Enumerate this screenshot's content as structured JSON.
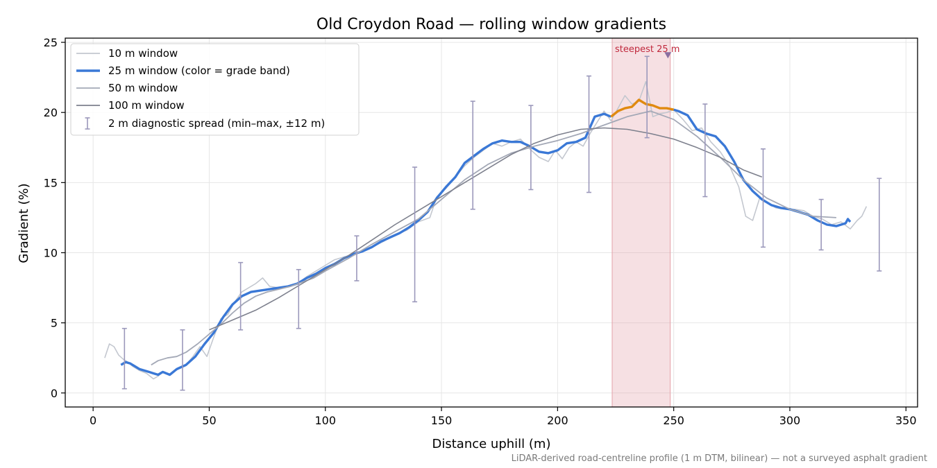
{
  "chart_data": {
    "type": "line",
    "title": "Old Croydon Road — rolling window gradients",
    "xlabel": "Distance uphill (m)",
    "ylabel": "Gradient (%)",
    "xlim": [
      -12,
      355
    ],
    "ylim": [
      -1,
      25.3
    ],
    "x_ticks": [
      0,
      50,
      100,
      150,
      200,
      250,
      300,
      350
    ],
    "y_ticks": [
      0,
      5,
      10,
      15,
      20,
      25
    ],
    "grid": true,
    "legend_position": "upper-left",
    "footnote": "LiDAR-derived road-centreline profile (1 m DTM, bilinear) — not a surveyed asphalt gradient",
    "colors": {
      "w10": "#c3c7cf",
      "w25_blue": "#3a78d6",
      "w25_orange": "#e08a10",
      "w50": "#a3a8b6",
      "w100": "#7d808d",
      "errorbar": "#9b98bb",
      "highlight": "#e4a0a8",
      "annotation": "#c0283c",
      "marker": "#8a6fa0"
    },
    "legend": [
      {
        "label": "10 m window",
        "key": "w10"
      },
      {
        "label": "25 m window (color = grade band)",
        "key": "w25"
      },
      {
        "label": "50 m window",
        "key": "w50"
      },
      {
        "label": "100 m window",
        "key": "w100"
      },
      {
        "label": "2 m diagnostic spread (min–max, ±12 m)",
        "key": "errorbar"
      }
    ],
    "highlight_band": {
      "x_start": 223.5,
      "x_end": 248.5
    },
    "annotation": {
      "text": "steepest 25 m",
      "x": 247.5,
      "y": 24.1
    },
    "series": [
      {
        "name": "10 m window",
        "key": "w10",
        "x": [
          5,
          7,
          9,
          11,
          13,
          15,
          17,
          20,
          23,
          26,
          28,
          30,
          33,
          36,
          40,
          43,
          46,
          49,
          52,
          55,
          58,
          61,
          64,
          67,
          70,
          73,
          76,
          80,
          84,
          88,
          92,
          96,
          100,
          104,
          108,
          112,
          116,
          120,
          125,
          130,
          135,
          140,
          145,
          148,
          152,
          156,
          160,
          164,
          168,
          172,
          176,
          180,
          184,
          188,
          192,
          196,
          199,
          202,
          205,
          208,
          211,
          214,
          217,
          220,
          223,
          226,
          229,
          232,
          235,
          238,
          241,
          244,
          247,
          250,
          254,
          258,
          262,
          266,
          270,
          274,
          278,
          281,
          284,
          287,
          290,
          294,
          298,
          302,
          306,
          310,
          314,
          318,
          322,
          326,
          329,
          331,
          333
        ],
        "y": [
          2.5,
          3.5,
          3.3,
          2.7,
          2.4,
          2.2,
          1.9,
          1.6,
          1.4,
          1.0,
          1.2,
          1.5,
          1.3,
          1.7,
          2.0,
          2.6,
          3.3,
          2.6,
          4.0,
          5.3,
          5.6,
          6.5,
          7.2,
          7.5,
          7.8,
          8.2,
          7.6,
          7.5,
          7.6,
          7.8,
          8.3,
          8.7,
          9.1,
          9.5,
          9.7,
          9.8,
          10.1,
          10.4,
          10.8,
          11.3,
          11.6,
          12.2,
          12.5,
          14.0,
          14.6,
          15.4,
          16.2,
          16.8,
          17.3,
          17.8,
          17.6,
          17.9,
          18.1,
          17.4,
          16.8,
          16.5,
          17.3,
          16.7,
          17.5,
          17.9,
          17.6,
          18.5,
          19.3,
          20.1,
          19.4,
          20.3,
          21.2,
          20.6,
          20.8,
          22.2,
          19.7,
          19.9,
          20.0,
          20.2,
          19.5,
          18.7,
          18.9,
          17.9,
          17.2,
          16.2,
          14.7,
          12.6,
          12.3,
          13.9,
          13.6,
          13.2,
          13.1,
          13.1,
          13.0,
          12.6,
          12.4,
          12.0,
          12.2,
          11.7,
          12.3,
          12.6,
          13.3
        ]
      },
      {
        "name": "25 m window (color = grade band)",
        "key": "w25",
        "x": [
          12,
          14,
          16,
          18,
          20,
          22,
          24,
          26,
          28,
          30,
          33,
          36,
          40,
          44,
          48,
          52,
          56,
          60,
          64,
          68,
          72,
          76,
          80,
          84,
          88,
          92,
          96,
          100,
          104,
          108,
          112,
          116,
          120,
          124,
          128,
          132,
          136,
          140,
          144,
          148,
          152,
          156,
          160,
          164,
          168,
          172,
          176,
          180,
          184,
          188,
          192,
          196,
          200,
          204,
          208,
          212,
          216,
          220,
          223,
          226,
          229,
          232,
          235,
          238,
          241,
          244,
          247,
          250,
          252,
          256,
          260,
          264,
          268,
          272,
          276,
          280,
          284,
          288,
          292,
          296,
          300,
          304,
          308,
          312,
          316,
          320,
          324,
          325,
          326
        ],
        "y": [
          2.0,
          2.2,
          2.1,
          1.9,
          1.7,
          1.6,
          1.5,
          1.4,
          1.3,
          1.5,
          1.3,
          1.7,
          2.0,
          2.6,
          3.5,
          4.3,
          5.4,
          6.3,
          6.9,
          7.2,
          7.3,
          7.4,
          7.5,
          7.6,
          7.8,
          8.2,
          8.5,
          8.9,
          9.2,
          9.6,
          9.9,
          10.1,
          10.4,
          10.8,
          11.1,
          11.4,
          11.8,
          12.3,
          12.9,
          13.9,
          14.7,
          15.4,
          16.4,
          16.9,
          17.4,
          17.8,
          18.0,
          17.9,
          17.9,
          17.6,
          17.2,
          17.1,
          17.3,
          17.8,
          17.9,
          18.2,
          19.7,
          19.9,
          19.7,
          20.1,
          20.3,
          20.4,
          20.9,
          20.6,
          20.5,
          20.3,
          20.3,
          20.2,
          20.1,
          19.8,
          18.8,
          18.5,
          18.3,
          17.6,
          16.5,
          15.2,
          14.4,
          13.8,
          13.4,
          13.2,
          13.1,
          12.9,
          12.7,
          12.3,
          12.0,
          11.9,
          12.1,
          12.4,
          12.2
        ]
      },
      {
        "name": "50 m window",
        "key": "w50",
        "x": [
          25,
          28,
          32,
          36,
          40,
          45,
          50,
          55,
          60,
          65,
          70,
          75,
          80,
          85,
          90,
          95,
          100,
          110,
          120,
          130,
          140,
          150,
          160,
          170,
          180,
          190,
          200,
          210,
          220,
          230,
          240,
          250,
          260,
          270,
          280,
          290,
          300,
          310,
          320
        ],
        "y": [
          2.0,
          2.3,
          2.5,
          2.6,
          2.9,
          3.5,
          4.2,
          4.9,
          5.7,
          6.4,
          6.9,
          7.2,
          7.4,
          7.6,
          7.9,
          8.2,
          8.7,
          9.6,
          10.6,
          11.5,
          12.4,
          13.8,
          15.2,
          16.3,
          17.1,
          17.6,
          18.0,
          18.5,
          19.1,
          19.7,
          20.1,
          19.5,
          18.3,
          16.8,
          15.2,
          13.9,
          13.1,
          12.6,
          12.5
        ]
      },
      {
        "name": "100 m window",
        "key": "w100",
        "x": [
          50,
          60,
          70,
          80,
          90,
          100,
          110,
          120,
          130,
          140,
          150,
          160,
          170,
          180,
          190,
          200,
          210,
          220,
          230,
          240,
          250,
          260,
          270,
          280,
          288
        ],
        "y": [
          4.5,
          5.2,
          5.9,
          6.8,
          7.8,
          8.8,
          9.8,
          10.9,
          12.0,
          13.0,
          14.0,
          15.0,
          16.0,
          17.0,
          17.8,
          18.4,
          18.8,
          18.9,
          18.8,
          18.5,
          18.1,
          17.5,
          16.8,
          15.9,
          15.4
        ]
      }
    ],
    "errorbars": [
      {
        "x": 13.5,
        "min": 0.3,
        "max": 4.6
      },
      {
        "x": 38.5,
        "min": 0.2,
        "max": 4.5
      },
      {
        "x": 63.5,
        "min": 4.5,
        "max": 9.3
      },
      {
        "x": 88.5,
        "min": 4.6,
        "max": 8.8
      },
      {
        "x": 113.5,
        "min": 8.0,
        "max": 11.2
      },
      {
        "x": 138.5,
        "min": 6.5,
        "max": 16.1
      },
      {
        "x": 163.5,
        "min": 13.1,
        "max": 20.8
      },
      {
        "x": 188.5,
        "min": 14.5,
        "max": 20.5
      },
      {
        "x": 213.5,
        "min": 14.3,
        "max": 22.6
      },
      {
        "x": 238.5,
        "min": 18.2,
        "max": 24.0
      },
      {
        "x": 263.5,
        "min": 14.0,
        "max": 20.6
      },
      {
        "x": 288.5,
        "min": 10.4,
        "max": 17.4
      },
      {
        "x": 313.5,
        "min": 10.2,
        "max": 13.8
      },
      {
        "x": 338.5,
        "min": 8.7,
        "max": 15.3
      }
    ]
  }
}
